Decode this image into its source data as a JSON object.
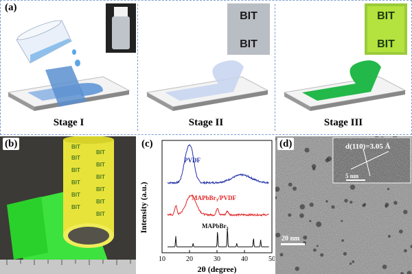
{
  "labels": {
    "a": "(a)",
    "b": "(b)",
    "c": "(c)",
    "d": "(d)"
  },
  "stages": [
    "Stage I",
    "Stage II",
    "Stage III"
  ],
  "film_text": "BIT",
  "tem": {
    "scale_bar": "20 nm",
    "inset_scale": "5 nm",
    "d_spacing": "d(110)=3.05 Å"
  },
  "colors": {
    "solution": "#7fb3e6",
    "film_clear": "#c6d3ee",
    "film_green": "#23b84a",
    "border": "#7a9ccf"
  },
  "chart_data": {
    "type": "line",
    "xlabel": "2θ (degree)",
    "ylabel": "Intensity (a.u.)",
    "xlim": [
      10,
      50
    ],
    "xticks": [
      10,
      20,
      30,
      40,
      50
    ],
    "series": [
      {
        "name": "PVDF",
        "color": "#1f2fa8",
        "peaks": [
          {
            "x": 20.3,
            "h": 1.0,
            "w": 1.3
          },
          {
            "x": 18.4,
            "h": 0.35,
            "w": 1.0
          },
          {
            "x": 39,
            "h": 0.22,
            "w": 3.5
          }
        ],
        "offset": 2.0
      },
      {
        "name": "MAPbBr3/PVDF",
        "color": "#e02424",
        "peaks": [
          {
            "x": 20.6,
            "h": 0.55,
            "w": 1.8
          },
          {
            "x": 15,
            "h": 0.25,
            "w": 0.4
          },
          {
            "x": 30.2,
            "h": 0.2,
            "w": 0.4
          },
          {
            "x": 33.8,
            "h": 0.1,
            "w": 0.4
          }
        ],
        "offset": 1.0
      },
      {
        "name": "MAPbBr3",
        "color": "#111111",
        "peaks": [
          {
            "x": 15,
            "h": 0.3,
            "w": 0.12
          },
          {
            "x": 21.3,
            "h": 0.1,
            "w": 0.12
          },
          {
            "x": 30.2,
            "h": 0.45,
            "w": 0.12
          },
          {
            "x": 33.8,
            "h": 0.55,
            "w": 0.12
          },
          {
            "x": 37.2,
            "h": 0.1,
            "w": 0.12
          },
          {
            "x": 43.3,
            "h": 0.25,
            "w": 0.12
          },
          {
            "x": 45.9,
            "h": 0.2,
            "w": 0.12
          }
        ],
        "offset": 0
      }
    ],
    "series_labels": [
      "PVDF",
      "MAPbBr",
      "3",
      "/PVDF",
      "MAPbBr",
      "3"
    ]
  }
}
